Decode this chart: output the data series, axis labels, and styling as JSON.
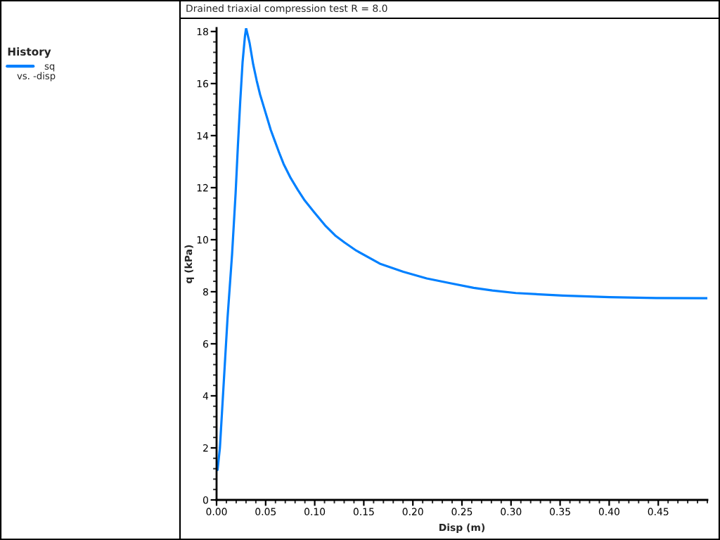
{
  "chart_data": {
    "type": "line",
    "title": "Drained triaxial compression test R = 8.0",
    "xlabel": "Disp (m)",
    "ylabel": "q (kPa)",
    "legend_title": "History",
    "annotations": [
      "vs. -disp"
    ],
    "series": [
      {
        "name": "sq",
        "color": "#0080ff",
        "x": [
          0.001,
          0.0034,
          0.0112,
          0.0158,
          0.0194,
          0.0217,
          0.0241,
          0.0265,
          0.0289,
          0.0301,
          0.0337,
          0.0373,
          0.0409,
          0.0444,
          0.048,
          0.0516,
          0.0552,
          0.0588,
          0.0636,
          0.0683,
          0.0755,
          0.0827,
          0.0898,
          0.0994,
          0.1113,
          0.1209,
          0.1305,
          0.1424,
          0.1663,
          0.1902,
          0.2141,
          0.238,
          0.2619,
          0.281,
          0.3048,
          0.3527,
          0.4005,
          0.448,
          0.5
        ],
        "values": [
          1.15,
          2.0,
          7.0,
          9.44,
          11.78,
          13.58,
          15.3,
          16.82,
          17.81,
          18.13,
          17.55,
          16.74,
          16.11,
          15.57,
          15.12,
          14.67,
          14.22,
          13.85,
          13.36,
          12.91,
          12.37,
          11.92,
          11.51,
          11.06,
          10.52,
          10.16,
          9.89,
          9.58,
          9.08,
          8.77,
          8.51,
          8.33,
          8.15,
          8.05,
          7.95,
          7.85,
          7.79,
          7.76,
          7.75
        ]
      }
    ],
    "xlim": [
      0,
      0.5
    ],
    "ylim": [
      0,
      18.13
    ],
    "xticks": [
      {
        "value": 0,
        "label": "0.00"
      },
      0.05,
      {
        "value": 0.1,
        "label": "0.10"
      },
      0.15,
      {
        "value": 0.2,
        "label": "0.20"
      },
      0.25,
      {
        "value": 0.3,
        "label": "0.30"
      },
      0.35,
      {
        "value": 0.4,
        "label": "0.40"
      },
      0.45
    ],
    "yticks": [
      0,
      2,
      4,
      6,
      8,
      10,
      12,
      14,
      16,
      18
    ],
    "legend": "left",
    "line_style": "solid"
  }
}
